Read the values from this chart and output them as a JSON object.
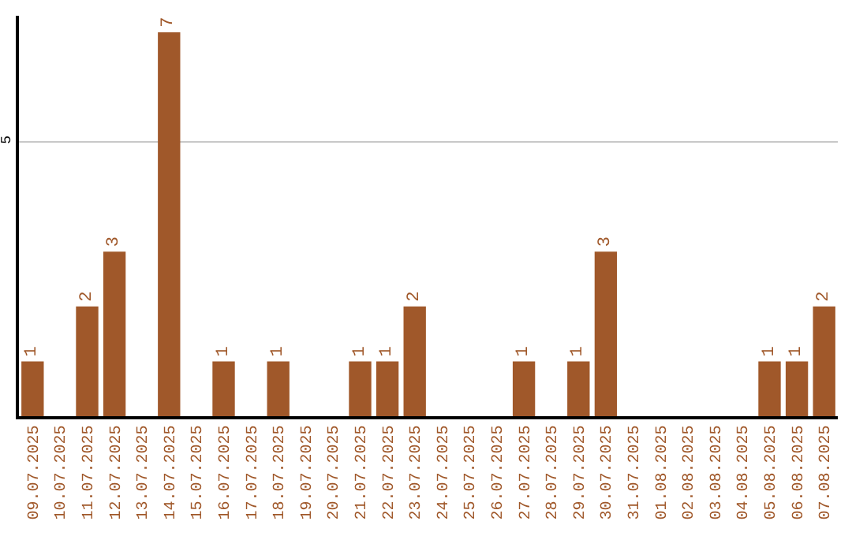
{
  "chart_data": {
    "type": "bar",
    "categories": [
      "09.07.2025",
      "10.07.2025",
      "11.07.2025",
      "12.07.2025",
      "13.07.2025",
      "14.07.2025",
      "15.07.2025",
      "16.07.2025",
      "17.07.2025",
      "18.07.2025",
      "19.07.2025",
      "20.07.2025",
      "21.07.2025",
      "22.07.2025",
      "23.07.2025",
      "24.07.2025",
      "25.07.2025",
      "26.07.2025",
      "27.07.2025",
      "28.07.2025",
      "29.07.2025",
      "30.07.2025",
      "31.07.2025",
      "01.08.2025",
      "02.08.2025",
      "03.08.2025",
      "04.08.2025",
      "05.08.2025",
      "06.08.2025",
      "07.08.2025"
    ],
    "values": [
      1,
      0,
      2,
      3,
      0,
      7,
      0,
      1,
      0,
      1,
      0,
      0,
      1,
      1,
      2,
      0,
      0,
      0,
      1,
      0,
      1,
      3,
      0,
      0,
      0,
      0,
      0,
      1,
      1,
      2
    ],
    "value_labels": [
      "1",
      null,
      "2",
      "3",
      null,
      "7",
      null,
      "1",
      null,
      "1",
      null,
      null,
      "1",
      "1",
      "2",
      null,
      null,
      null,
      "1",
      null,
      "1",
      "3",
      null,
      null,
      null,
      null,
      null,
      "1",
      "1",
      "2"
    ],
    "color": "#a0582a",
    "ylim": [
      0,
      7.3
    ],
    "yticks": [
      5
    ],
    "grid": "y"
  }
}
